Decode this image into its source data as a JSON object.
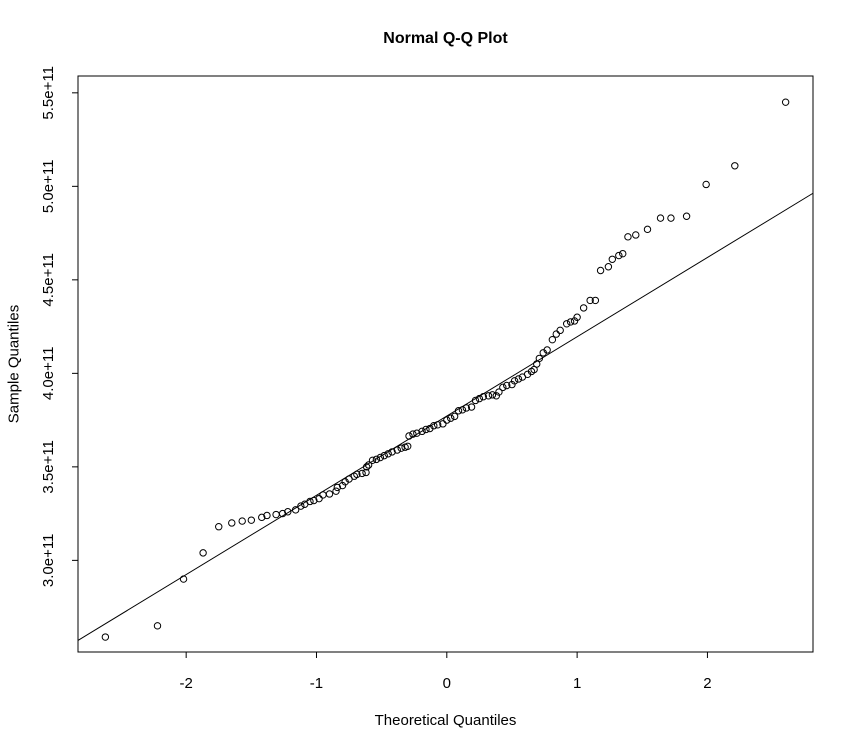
{
  "chart": {
    "title": "Normal Q-Q Plot",
    "xlabel": "Theoretical Quantiles",
    "ylabel": "Sample Quantiles"
  },
  "chart_data": {
    "type": "scatter",
    "title": "Normal Q-Q Plot",
    "xlabel": "Theoretical Quantiles",
    "ylabel": "Sample Quantiles",
    "grid": false,
    "legend": null,
    "marker": "open-circle",
    "marker_color": "#000000",
    "line_color": "#000000",
    "background_color": "#ffffff",
    "xlim": [
      -2.83,
      2.81
    ],
    "ylim": [
      251000000000.0,
      559000000000.0
    ],
    "x_ticks": [
      -2,
      -1,
      0,
      1,
      2
    ],
    "x_tick_labels": [
      "-2",
      "-1",
      "0",
      "1",
      "2"
    ],
    "y_ticks": [
      300000000000.0,
      350000000000.0,
      400000000000.0,
      450000000000.0,
      500000000000.0,
      550000000000.0
    ],
    "y_tick_labels": [
      "3.0e+11",
      "3.5e+11",
      "4.0e+11",
      "4.5e+11",
      "5.0e+11",
      "5.5e+11"
    ],
    "reference_line": {
      "x1": -2.83,
      "y1": 257200000000.0,
      "x2": 2.81,
      "y2": 496300000000.0,
      "slope_per_quantile": 42400000000.0,
      "intercept": 377200000000.0
    },
    "points": [
      [
        -2.62,
        259000000000.0
      ],
      [
        -2.22,
        265000000000.0
      ],
      [
        -2.02,
        290000000000.0
      ],
      [
        -1.87,
        304000000000.0
      ],
      [
        -1.75,
        318000000000.0
      ],
      [
        -1.65,
        320000000000.0
      ],
      [
        -1.57,
        321000000000.0
      ],
      [
        -1.5,
        321500000000.0
      ],
      [
        -1.42,
        323000000000.0
      ],
      [
        -1.38,
        324000000000.0
      ],
      [
        -1.31,
        324500000000.0
      ],
      [
        -1.26,
        325000000000.0
      ],
      [
        -1.22,
        326000000000.0
      ],
      [
        -1.16,
        327000000000.0
      ],
      [
        -1.12,
        329000000000.0
      ],
      [
        -1.09,
        330000000000.0
      ],
      [
        -1.05,
        331500000000.0
      ],
      [
        -1.02,
        332000000000.0
      ],
      [
        -0.98,
        333000000000.0
      ],
      [
        -0.95,
        335000000000.0
      ],
      [
        -0.9,
        335500000000.0
      ],
      [
        -0.85,
        337000000000.0
      ],
      [
        -0.84,
        339000000000.0
      ],
      [
        -0.8,
        340000000000.0
      ],
      [
        -0.78,
        342000000000.0
      ],
      [
        -0.75,
        343500000000.0
      ],
      [
        -0.71,
        345000000000.0
      ],
      [
        -0.69,
        346000000000.0
      ],
      [
        -0.65,
        346500000000.0
      ],
      [
        -0.62,
        347000000000.0
      ],
      [
        -0.615,
        350000000000.0
      ],
      [
        -0.6,
        351000000000.0
      ],
      [
        -0.57,
        353500000000.0
      ],
      [
        -0.54,
        354000000000.0
      ],
      [
        -0.51,
        355000000000.0
      ],
      [
        -0.48,
        356000000000.0
      ],
      [
        -0.45,
        357000000000.0
      ],
      [
        -0.42,
        358000000000.0
      ],
      [
        -0.38,
        359000000000.0
      ],
      [
        -0.35,
        360000000000.0
      ],
      [
        -0.32,
        360500000000.0
      ],
      [
        -0.3,
        361000000000.0
      ],
      [
        -0.29,
        366500000000.0
      ],
      [
        -0.26,
        367500000000.0
      ],
      [
        -0.23,
        368000000000.0
      ],
      [
        -0.19,
        369000000000.0
      ],
      [
        -0.16,
        370000000000.0
      ],
      [
        -0.13,
        370500000000.0
      ],
      [
        -0.1,
        372000000000.0
      ],
      [
        -0.07,
        372500000000.0
      ],
      [
        -0.03,
        373000000000.0
      ],
      [
        0.0,
        375000000000.0
      ],
      [
        0.03,
        376000000000.0
      ],
      [
        0.06,
        377000000000.0
      ],
      [
        0.09,
        380000000000.0
      ],
      [
        0.12,
        380500000000.0
      ],
      [
        0.15,
        381500000000.0
      ],
      [
        0.19,
        382000000000.0
      ],
      [
        0.22,
        385500000000.0
      ],
      [
        0.25,
        386500000000.0
      ],
      [
        0.28,
        387500000000.0
      ],
      [
        0.32,
        388000000000.0
      ],
      [
        0.35,
        388500000000.0
      ],
      [
        0.38,
        388000000000.0
      ],
      [
        0.4,
        390000000000.0
      ],
      [
        0.43,
        392500000000.0
      ],
      [
        0.46,
        393500000000.0
      ],
      [
        0.5,
        394000000000.0
      ],
      [
        0.52,
        396000000000.0
      ],
      [
        0.55,
        397000000000.0
      ],
      [
        0.58,
        398000000000.0
      ],
      [
        0.62,
        399500000000.0
      ],
      [
        0.65,
        401000000000.0
      ],
      [
        0.67,
        402000000000.0
      ],
      [
        0.69,
        405000000000.0
      ],
      [
        0.71,
        408000000000.0
      ],
      [
        0.74,
        411000000000.0
      ],
      [
        0.77,
        412500000000.0
      ],
      [
        0.81,
        418000000000.0
      ],
      [
        0.84,
        421000000000.0
      ],
      [
        0.87,
        423000000000.0
      ],
      [
        0.92,
        426500000000.0
      ],
      [
        0.95,
        427500000000.0
      ],
      [
        0.98,
        428000000000.0
      ],
      [
        1.0,
        430000000000.0
      ],
      [
        1.05,
        435000000000.0
      ],
      [
        1.1,
        439000000000.0
      ],
      [
        1.14,
        439000000000.0
      ],
      [
        1.18,
        455000000000.0
      ],
      [
        1.24,
        457000000000.0
      ],
      [
        1.27,
        461000000000.0
      ],
      [
        1.32,
        463000000000.0
      ],
      [
        1.35,
        464000000000.0
      ],
      [
        1.39,
        473000000000.0
      ],
      [
        1.45,
        474000000000.0
      ],
      [
        1.54,
        477000000000.0
      ],
      [
        1.64,
        483000000000.0
      ],
      [
        1.72,
        483000000000.0
      ],
      [
        1.84,
        484000000000.0
      ],
      [
        1.99,
        501000000000.0
      ],
      [
        2.21,
        511000000000.0
      ],
      [
        2.6,
        545000000000.0
      ]
    ]
  }
}
